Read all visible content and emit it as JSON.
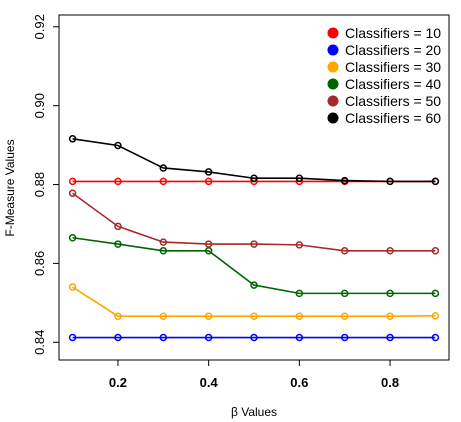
{
  "chart_data": {
    "type": "line",
    "xlabel": "β Values",
    "ylabel": "F-Measure Values",
    "xlim": [
      0.07,
      0.93
    ],
    "ylim": [
      0.8355,
      0.923
    ],
    "x_ticks": [
      0.2,
      0.4,
      0.6,
      0.8
    ],
    "y_ticks": [
      0.84,
      0.86,
      0.88,
      0.9,
      0.92
    ],
    "x_tick_labels": [
      "0.2",
      "0.4",
      "0.6",
      "0.8"
    ],
    "y_tick_labels": [
      "0.84",
      "0.86",
      "0.88",
      "0.90",
      "0.92"
    ],
    "grid": false,
    "legend_position": "top-right",
    "x": [
      0.1,
      0.2,
      0.3,
      0.4,
      0.5,
      0.6,
      0.7,
      0.8,
      0.9
    ],
    "series": [
      {
        "name": "Classifiers = 10",
        "color": "#ff0000",
        "values": [
          0.8808,
          0.8808,
          0.8808,
          0.8808,
          0.8808,
          0.8808,
          0.8808,
          0.8808,
          0.8808
        ]
      },
      {
        "name": "Classifiers = 20",
        "color": "#0000ff",
        "values": [
          0.8412,
          0.8412,
          0.8412,
          0.8412,
          0.8412,
          0.8412,
          0.8412,
          0.8412,
          0.8412
        ]
      },
      {
        "name": "Classifiers = 30",
        "color": "#ffa500",
        "values": [
          0.854,
          0.8466,
          0.8466,
          0.8466,
          0.8466,
          0.8466,
          0.8466,
          0.8466,
          0.8467
        ]
      },
      {
        "name": "Classifiers = 40",
        "color": "#006400",
        "values": [
          0.8665,
          0.8649,
          0.8632,
          0.8632,
          0.8545,
          0.8524,
          0.8524,
          0.8524,
          0.8524
        ]
      },
      {
        "name": "Classifiers = 50",
        "color": "#a52a2a",
        "values": [
          0.8778,
          0.8694,
          0.8654,
          0.8649,
          0.8649,
          0.8647,
          0.8632,
          0.8632,
          0.8632
        ]
      },
      {
        "name": "Classifiers = 60",
        "color": "#000000",
        "values": [
          0.8916,
          0.8899,
          0.8842,
          0.8832,
          0.8816,
          0.8816,
          0.881,
          0.8808,
          0.8808
        ]
      }
    ]
  }
}
